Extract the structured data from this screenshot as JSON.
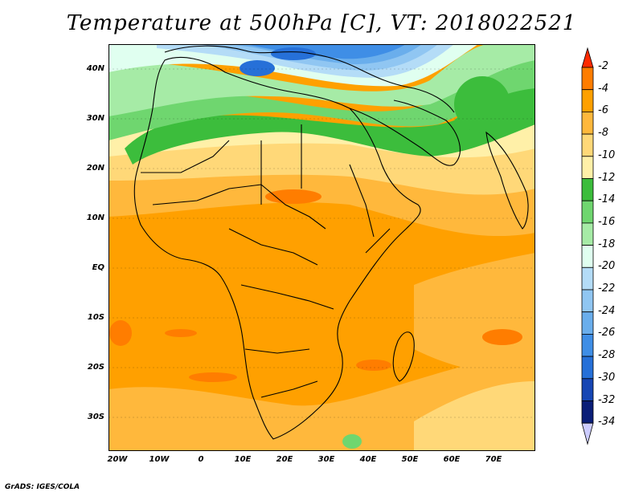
{
  "title": "Temperature at 500hPa [C], VT: 2018022521",
  "footer": "GrADS: IGES/COLA",
  "map": {
    "lat_labels": [
      "40N",
      "30N",
      "20N",
      "10N",
      "EQ",
      "10S",
      "20S",
      "30S"
    ],
    "lat_values": [
      40,
      30,
      20,
      10,
      0,
      -10,
      -20,
      -30
    ],
    "lon_labels": [
      "20W",
      "10W",
      "0",
      "10E",
      "20E",
      "30E",
      "40E",
      "50E",
      "60E",
      "70E"
    ],
    "lon_values": [
      -20,
      -10,
      0,
      10,
      20,
      30,
      40,
      50,
      60,
      70
    ],
    "lon_range": [
      -22.5,
      80
    ],
    "lat_range": [
      -37,
      45
    ]
  },
  "legend": {
    "labels": [
      "-2",
      "-4",
      "-6",
      "-8",
      "-10",
      "-12",
      "-14",
      "-16",
      "-18",
      "-20",
      "-22",
      "-24",
      "-26",
      "-28",
      "-30",
      "-32",
      "-34"
    ],
    "colors": [
      "#ff3c00",
      "#ff7d00",
      "#ffa000",
      "#ffb83c",
      "#ffd878",
      "#fff0a8",
      "#3cbd3c",
      "#6fd66f",
      "#a6eba6",
      "#e0fff0",
      "#b4dcf7",
      "#90c6f2",
      "#6aaeec",
      "#3f8ee6",
      "#2670d8",
      "#1646b4",
      "#0a1e78"
    ],
    "arrow_top_color": "#ff2a00",
    "arrow_bottom_color": "#ccccff"
  }
}
